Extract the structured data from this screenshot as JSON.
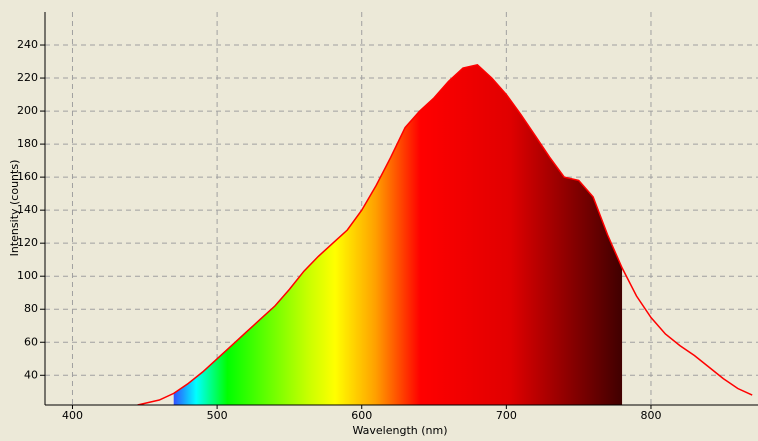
{
  "chart_data": {
    "type": "area",
    "x_label": "Wavelength (nm)",
    "y_label": "Intensity (counts)",
    "x": [
      445,
      460,
      470,
      480,
      490,
      500,
      510,
      520,
      530,
      540,
      550,
      560,
      570,
      580,
      590,
      600,
      610,
      620,
      630,
      640,
      650,
      660,
      670,
      680,
      690,
      700,
      710,
      720,
      730,
      740,
      750,
      760,
      770,
      780,
      790,
      800,
      810,
      820,
      830,
      840,
      850,
      860,
      870
    ],
    "values": [
      22,
      25,
      29,
      35,
      42,
      50,
      58,
      66,
      74,
      82,
      92,
      103,
      112,
      120,
      128,
      140,
      155,
      172,
      190,
      200,
      208,
      218,
      226,
      228,
      220,
      210,
      198,
      185,
      172,
      160,
      158,
      148,
      125,
      105,
      88,
      75,
      65,
      58,
      52,
      45,
      38,
      32,
      28
    ],
    "color": "#ff0000",
    "fill_range": [
      470,
      780
    ],
    "xlim": [
      381,
      874
    ],
    "xticks": [
      400,
      500,
      600,
      700,
      800
    ],
    "ylim": [
      22,
      260
    ],
    "yticks": [
      40,
      60,
      80,
      100,
      120,
      140,
      160,
      180,
      200,
      220,
      240
    ],
    "grid": true
  }
}
